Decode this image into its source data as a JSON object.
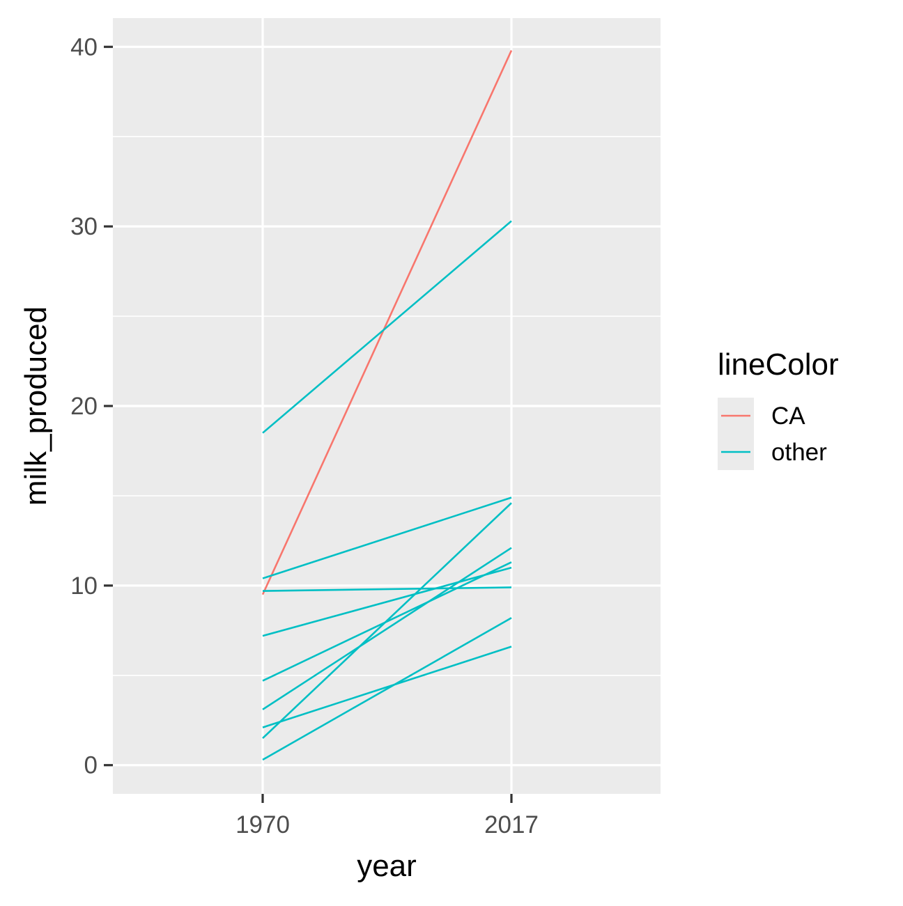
{
  "chart_data": {
    "type": "line",
    "title": "",
    "xlabel": "year",
    "ylabel": "milk_produced",
    "x": [
      "1970",
      "2017"
    ],
    "ylim": [
      -1.6,
      41.6
    ],
    "y_ticks": [
      "0",
      "10",
      "20",
      "30",
      "40"
    ],
    "grid": true,
    "legend": {
      "title": "lineColor",
      "position": "right",
      "entries": [
        {
          "label": "CA",
          "color": "#F8766D"
        },
        {
          "label": "other",
          "color": "#00BFC4"
        }
      ]
    },
    "series": [
      {
        "group": "CA",
        "color": "#F8766D",
        "values": [
          9.5,
          39.8
        ]
      },
      {
        "group": "other",
        "color": "#00BFC4",
        "values": [
          18.5,
          30.3
        ]
      },
      {
        "group": "other",
        "color": "#00BFC4",
        "values": [
          10.4,
          14.9
        ]
      },
      {
        "group": "other",
        "color": "#00BFC4",
        "values": [
          9.7,
          9.9
        ]
      },
      {
        "group": "other",
        "color": "#00BFC4",
        "values": [
          7.2,
          11.0
        ]
      },
      {
        "group": "other",
        "color": "#00BFC4",
        "values": [
          4.7,
          11.3
        ]
      },
      {
        "group": "other",
        "color": "#00BFC4",
        "values": [
          3.1,
          12.1
        ]
      },
      {
        "group": "other",
        "color": "#00BFC4",
        "values": [
          2.1,
          6.6
        ]
      },
      {
        "group": "other",
        "color": "#00BFC4",
        "values": [
          1.5,
          14.6
        ]
      },
      {
        "group": "other",
        "color": "#00BFC4",
        "values": [
          0.3,
          8.2
        ]
      }
    ]
  }
}
